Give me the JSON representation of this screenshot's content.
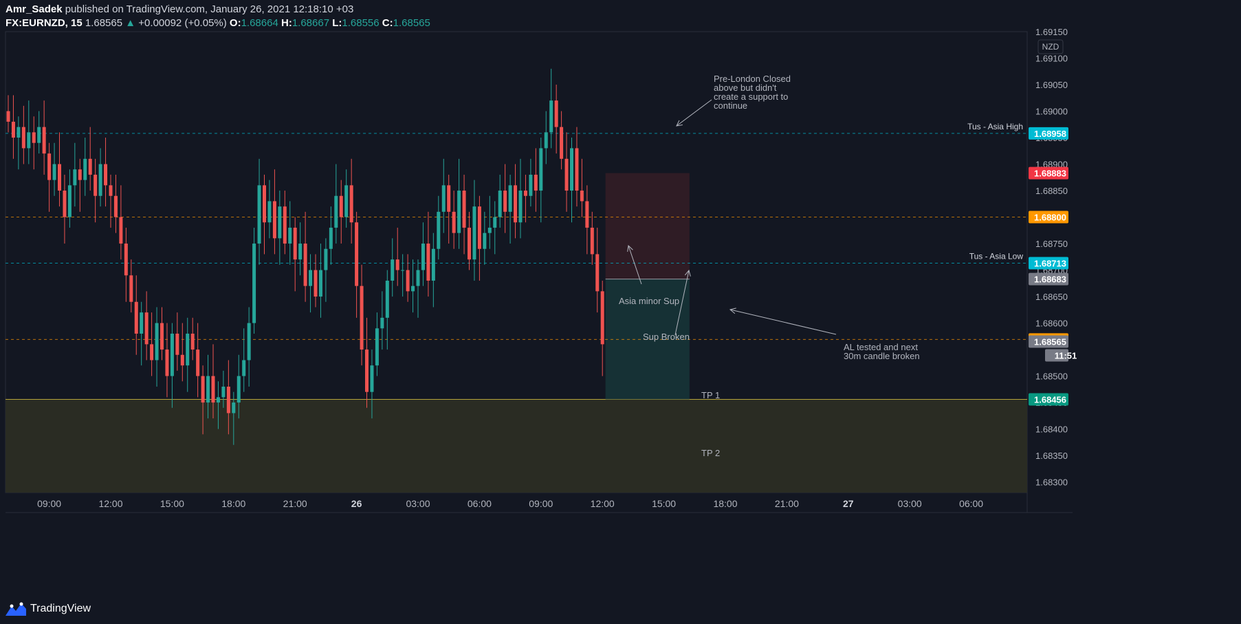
{
  "header": {
    "author": "Amr_Sadek",
    "published_text": "published on TradingView.com, January 26, 2021 12:18:10 +03",
    "symbol": "FX:EURNZD, 15",
    "last": "1.68565",
    "change_arrow": "▲",
    "change": "+0.00092 (+0.05%)",
    "o_label": "O:",
    "o_value": "1.68664",
    "h_label": "H:",
    "h_value": "1.68667",
    "l_label": "L:",
    "l_value": "1.68556",
    "c_label": "C:",
    "c_value": "1.68565"
  },
  "footer": {
    "brand": "TradingView",
    "logo": "tradingview-logo-icon"
  },
  "colors": {
    "background": "#131722",
    "up": "#26a69a",
    "down": "#ef5350",
    "grid": "#1e222d",
    "text": "#b2b5be",
    "cyan": "#00bcd4",
    "orange": "#ff9800",
    "red": "#f23645",
    "gray": "#787b86",
    "teal": "#089981"
  },
  "chart_data": {
    "type": "candlestick",
    "currency_badge": "NZD",
    "y_ticks": [
      "1.69150",
      "1.69100",
      "1.69050",
      "1.69000",
      "1.68950",
      "1.68900",
      "1.68850",
      "1.68750",
      "1.68700",
      "1.68650",
      "1.68600",
      "1.68500",
      "1.68450",
      "1.68400",
      "1.68350",
      "1.68300"
    ],
    "ylim": [
      1.6828,
      1.6915
    ],
    "x_ticks": [
      {
        "label": "09:00",
        "bar": 8,
        "bold": false
      },
      {
        "label": "12:00",
        "bar": 20,
        "bold": false
      },
      {
        "label": "15:00",
        "bar": 32,
        "bold": false
      },
      {
        "label": "18:00",
        "bar": 44,
        "bold": false
      },
      {
        "label": "21:00",
        "bar": 56,
        "bold": false
      },
      {
        "label": "26",
        "bar": 68,
        "bold": true
      },
      {
        "label": "03:00",
        "bar": 80,
        "bold": false
      },
      {
        "label": "06:00",
        "bar": 92,
        "bold": false
      },
      {
        "label": "09:00",
        "bar": 104,
        "bold": false
      },
      {
        "label": "12:00",
        "bar": 116,
        "bold": false
      },
      {
        "label": "15:00",
        "bar": 128,
        "bold": false
      },
      {
        "label": "18:00",
        "bar": 140,
        "bold": false
      },
      {
        "label": "21:00",
        "bar": 152,
        "bold": false
      },
      {
        "label": "27",
        "bar": 164,
        "bold": true
      },
      {
        "label": "03:00",
        "bar": 176,
        "bold": false
      },
      {
        "label": "06:00",
        "bar": 188,
        "bold": false
      }
    ],
    "close_series": [
      1.6898,
      1.6895,
      1.6897,
      1.6893,
      1.6896,
      1.6894,
      1.6897,
      1.6892,
      1.6887,
      1.689,
      1.6885,
      1.688,
      1.6886,
      1.6889,
      1.6887,
      1.6891,
      1.6888,
      1.6884,
      1.689,
      1.6886,
      1.6884,
      1.688,
      1.6875,
      1.6869,
      1.6864,
      1.6858,
      1.6862,
      1.6856,
      1.6853,
      1.686,
      1.6855,
      1.685,
      1.6858,
      1.6854,
      1.6852,
      1.6858,
      1.6855,
      1.685,
      1.6845,
      1.685,
      1.6845,
      1.6846,
      1.6848,
      1.6843,
      1.6845,
      1.685,
      1.6853,
      1.686,
      1.6875,
      1.6886,
      1.6879,
      1.6883,
      1.6876,
      1.6882,
      1.6875,
      1.6878,
      1.6872,
      1.6875,
      1.6867,
      1.687,
      1.6865,
      1.687,
      1.6874,
      1.6878,
      1.6884,
      1.688,
      1.6886,
      1.6879,
      1.6867,
      1.6855,
      1.6847,
      1.6852,
      1.6859,
      1.6861,
      1.6868,
      1.6872,
      1.687,
      1.687,
      1.6866,
      1.6867,
      1.687,
      1.6875,
      1.6868,
      1.6874,
      1.6881,
      1.6886,
      1.6881,
      1.6877,
      1.6885,
      1.6878,
      1.6872,
      1.6882,
      1.6874,
      1.6877,
      1.6878,
      1.688,
      1.6885,
      1.6881,
      1.6886,
      1.6879,
      1.6885,
      1.6884,
      1.6888,
      1.6885,
      1.6893,
      1.6896,
      1.6902,
      1.6897,
      1.6891,
      1.6885,
      1.6893,
      1.6885,
      1.6883,
      1.6878,
      1.6873,
      1.6866,
      1.6856
    ],
    "ohlc_sample": {
      "last_bar": {
        "open": 1.68664,
        "high": 1.68667,
        "low": 1.68556,
        "close": 1.68565
      }
    },
    "horizontal_lines": [
      {
        "price": 1.68958,
        "style": "dashed",
        "color": "#00bcd4",
        "label": "Tus - Asia High",
        "badge": "1.68958"
      },
      {
        "price": 1.688,
        "style": "dashed",
        "color": "#ff9800",
        "label": "",
        "badge": "1.68800"
      },
      {
        "price": 1.68713,
        "style": "dashed",
        "color": "#00bcd4",
        "label": "Tus - Asia Low",
        "badge": "1.68713"
      },
      {
        "price": 1.68569,
        "style": "dashed",
        "color": "#ff9800",
        "label": "",
        "badge": "1.68569"
      }
    ],
    "price_badges": [
      {
        "price": 1.68883,
        "text": "1.68883",
        "color": "#f23645"
      },
      {
        "price": 1.68683,
        "text": "1.68683",
        "color": "#787b86"
      },
      {
        "price": 1.68565,
        "text": "1.68565",
        "color": "#787b86"
      },
      {
        "price": 1.68456,
        "text": "1.68456",
        "color": "#089981"
      }
    ],
    "countdown": "11:51",
    "position": {
      "entry": 1.68683,
      "stop": 1.68883,
      "target": 1.68456,
      "start_bar": 117,
      "end_bar": 133
    },
    "zone": {
      "top": 1.68456,
      "bottom": 1.6828
    },
    "annotations": [
      {
        "name": "pre-london-note",
        "lines": [
          "Pre-London Closed",
          "above but didn't",
          "create a support to",
          "continue"
        ]
      },
      {
        "name": "asia-minor-sup-note",
        "lines": [
          "Asia minor Sup"
        ]
      },
      {
        "name": "sup-broken-note",
        "lines": [
          "Sup Broken"
        ]
      },
      {
        "name": "al-tested-note",
        "lines": [
          "AL tested and next",
          "30m candle broken"
        ]
      },
      {
        "name": "tp1-label",
        "lines": [
          "TP 1"
        ]
      },
      {
        "name": "tp2-label",
        "lines": [
          "TP 2"
        ]
      }
    ]
  }
}
